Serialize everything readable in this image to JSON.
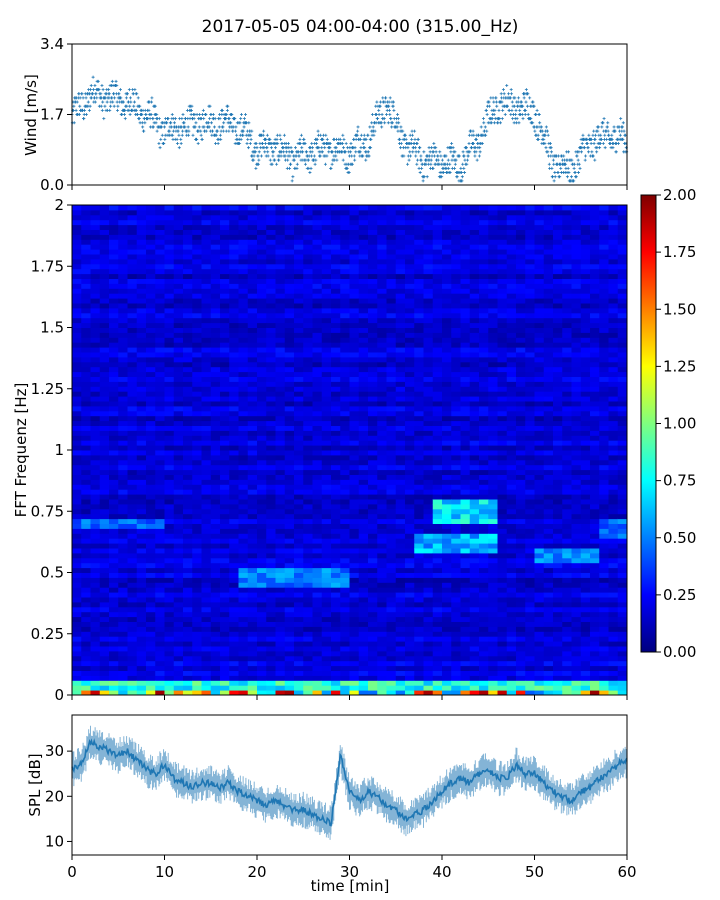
{
  "title": "2017-05-05 04:00-04:00 (315.00_Hz)",
  "colors": {
    "series": "#1f77b4",
    "axis": "#000000",
    "background": "#ffffff"
  },
  "chart_data": [
    {
      "type": "scatter",
      "panel": "wind",
      "title": "2017-05-05 04:00-04:00 (315.00_Hz)",
      "xlabel": "",
      "ylabel": "Wind [m/s]",
      "xlim": [
        0,
        60
      ],
      "ylim": [
        0,
        3.4
      ],
      "xticks": [
        0,
        10,
        20,
        30,
        40,
        50,
        60
      ],
      "xtick_labels_shown": false,
      "yticks": [
        0.0,
        1.7,
        3.4
      ],
      "ytick_labels": [
        "0.0",
        "1.7",
        "3.4"
      ],
      "marker": "plus",
      "trend": {
        "x": [
          0,
          2,
          4,
          6,
          8,
          10,
          12,
          14,
          16,
          18,
          20,
          22,
          24,
          26,
          28,
          30,
          32,
          34,
          36,
          38,
          40,
          42,
          44,
          46,
          48,
          50,
          52,
          54,
          56,
          58,
          60
        ],
        "y": [
          1.6,
          2.2,
          2.1,
          2.0,
          1.7,
          1.3,
          1.4,
          1.5,
          1.5,
          1.4,
          0.9,
          0.9,
          0.6,
          0.8,
          0.9,
          0.8,
          1.1,
          2.0,
          1.0,
          0.6,
          0.55,
          0.5,
          1.1,
          2.0,
          1.9,
          1.8,
          0.5,
          0.4,
          1.0,
          1.2,
          1.1
        ]
      }
    },
    {
      "type": "heatmap",
      "panel": "spectrogram",
      "xlabel": "",
      "ylabel": "FFT Frequenz [Hz]",
      "xlim": [
        0,
        60
      ],
      "ylim": [
        0,
        2
      ],
      "xticks": [
        0,
        10,
        20,
        30,
        40,
        50,
        60
      ],
      "xtick_labels_shown": false,
      "yticks": [
        0,
        0.25,
        0.5,
        0.75,
        1,
        1.25,
        1.5,
        1.75,
        2
      ],
      "ytick_labels": [
        "0",
        "0.25",
        "0.5",
        "0.75",
        "1",
        "1.25",
        "1.5",
        "1.75",
        "2"
      ],
      "colormap": "jet",
      "colorbar": {
        "range": [
          0.0,
          2.0
        ],
        "ticks": [
          0.0,
          0.25,
          0.5,
          0.75,
          1.0,
          1.25,
          1.5,
          1.75,
          2.0
        ],
        "tick_labels": [
          "0.00",
          "0.25",
          "0.50",
          "0.75",
          "1.00",
          "1.25",
          "1.50",
          "1.75",
          "2.00"
        ]
      },
      "features": [
        {
          "kind": "band",
          "t": [
            0,
            10
          ],
          "f": [
            0.68,
            0.72
          ],
          "value": 0.45
        },
        {
          "kind": "band",
          "t": [
            18,
            30
          ],
          "f": [
            0.45,
            0.52
          ],
          "value": 0.5
        },
        {
          "kind": "band",
          "t": [
            37,
            46
          ],
          "f": [
            0.58,
            0.66
          ],
          "value": 0.6
        },
        {
          "kind": "band",
          "t": [
            39,
            46
          ],
          "f": [
            0.7,
            0.8
          ],
          "value": 0.7
        },
        {
          "kind": "band",
          "t": [
            50,
            57
          ],
          "f": [
            0.54,
            0.6
          ],
          "value": 0.5
        },
        {
          "kind": "band",
          "t": [
            57,
            60
          ],
          "f": [
            0.64,
            0.72
          ],
          "value": 0.45
        },
        {
          "kind": "band",
          "t": [
            0,
            60
          ],
          "f": [
            0.0,
            0.02
          ],
          "value": 1.6
        },
        {
          "kind": "band",
          "t": [
            0,
            60
          ],
          "f": [
            0.02,
            0.05
          ],
          "value": 0.8
        }
      ]
    },
    {
      "type": "line",
      "panel": "spl",
      "xlabel": "time [min]",
      "ylabel": "SPL [dB]",
      "xlim": [
        0,
        60
      ],
      "ylim": [
        7,
        38
      ],
      "xticks": [
        0,
        10,
        20,
        30,
        40,
        50,
        60
      ],
      "xtick_labels": [
        "0",
        "10",
        "20",
        "30",
        "40",
        "50",
        "60"
      ],
      "yticks": [
        10,
        20,
        30
      ],
      "ytick_labels": [
        "10",
        "20",
        "30"
      ],
      "x": [
        0,
        1,
        2,
        3,
        4,
        5,
        6,
        7,
        8,
        9,
        10,
        11,
        12,
        13,
        14,
        15,
        16,
        17,
        18,
        19,
        20,
        21,
        22,
        23,
        24,
        25,
        26,
        27,
        28,
        29,
        30,
        31,
        32,
        33,
        34,
        35,
        36,
        37,
        38,
        39,
        40,
        41,
        42,
        43,
        44,
        45,
        46,
        47,
        48,
        49,
        50,
        51,
        52,
        53,
        54,
        55,
        56,
        57,
        58,
        59,
        60
      ],
      "y": [
        26,
        27,
        32,
        31,
        30,
        29,
        30,
        28,
        26,
        25,
        27,
        24,
        23,
        22,
        23,
        23,
        22,
        23,
        21,
        20,
        19,
        18,
        19,
        18,
        17,
        17,
        16,
        15,
        14,
        29,
        21,
        19,
        21,
        20,
        18,
        17,
        15,
        16,
        17,
        19,
        21,
        23,
        24,
        23,
        25,
        26,
        24,
        24,
        27,
        25,
        25,
        23,
        21,
        20,
        19,
        21,
        22,
        24,
        25,
        27,
        28
      ]
    }
  ]
}
